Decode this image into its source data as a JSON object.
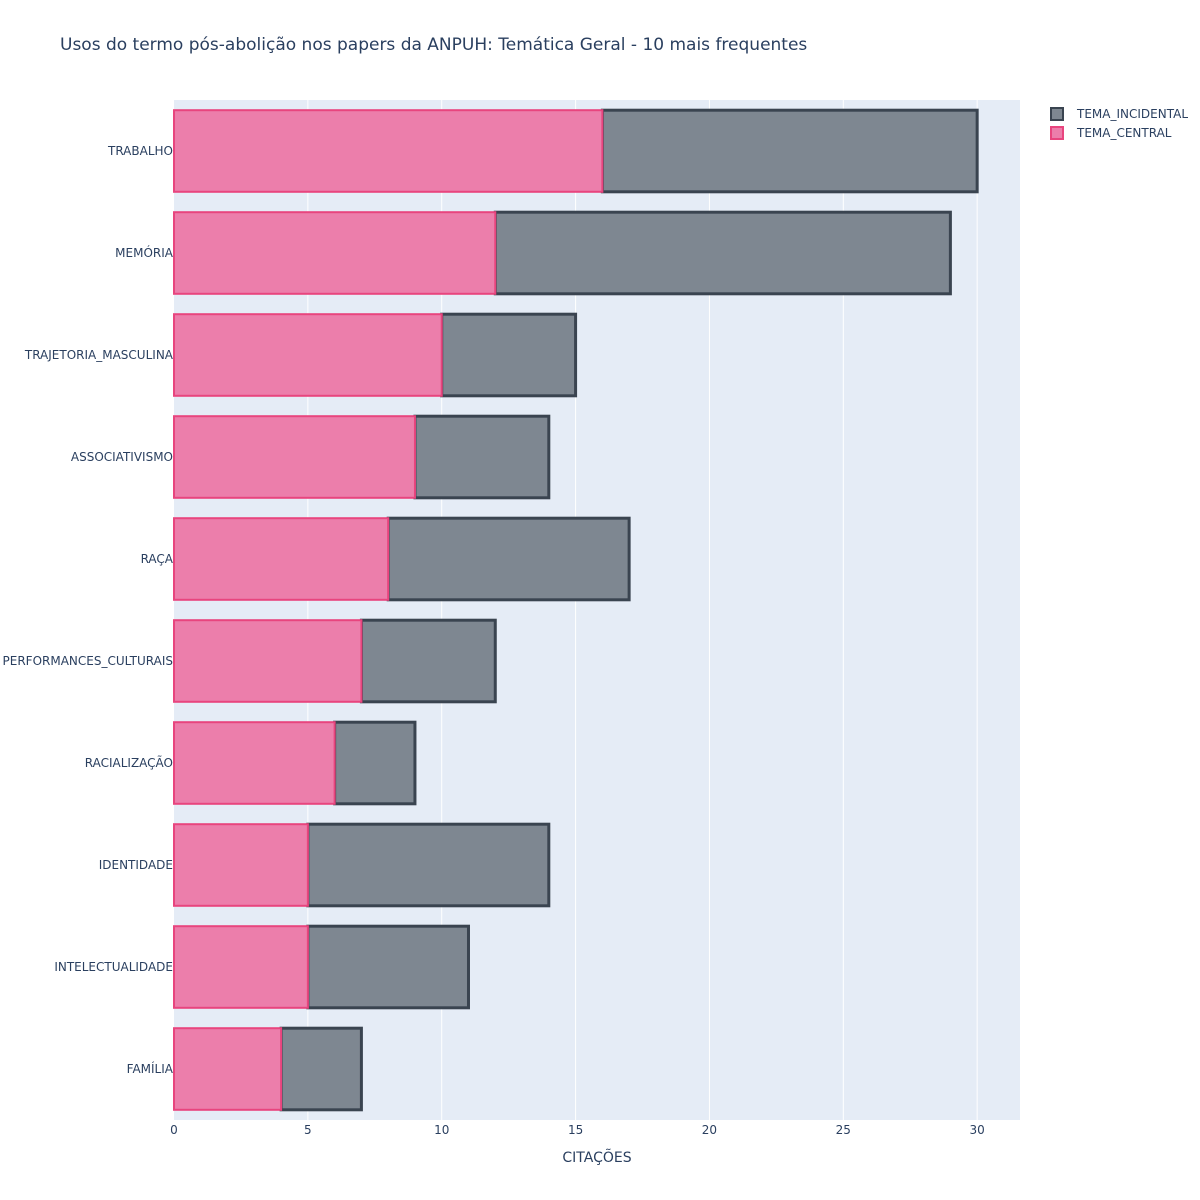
{
  "chart_data": {
    "type": "bar",
    "orientation": "horizontal",
    "barmode": "stack",
    "title": "Usos do termo pós-abolição nos papers da ANPUH: Temática Geral - 10 mais frequentes",
    "xlabel": "CITAÇÕES",
    "ylabel": "",
    "xlim": [
      0,
      31.6
    ],
    "xticks": [
      0,
      5,
      10,
      15,
      20,
      25,
      30
    ],
    "grid": true,
    "legend_position": "top-right",
    "categories": [
      "TRABALHO",
      "MEMÓRIA",
      "TRAJETORIA_MASCULINA",
      "ASSOCIATIVISMO",
      "RAÇA",
      "PERFORMANCES_CULTURAIS",
      "RACIALIZAÇÃO",
      "IDENTIDADE",
      "INTELECTUALIDADE",
      "FAMÍLIA"
    ],
    "series": [
      {
        "name": "TEMA_CENTRAL",
        "values": [
          16,
          12,
          10,
          9,
          8,
          7,
          6,
          5,
          5,
          4
        ],
        "fill": "#ec7eab",
        "stroke": "#e8457e"
      },
      {
        "name": "TEMA_INCIDENTAL",
        "values": [
          14,
          17,
          5,
          5,
          9,
          5,
          3,
          9,
          6,
          3
        ],
        "fill": "#7e8791",
        "stroke": "#3a4450"
      }
    ],
    "legend_order": [
      "TEMA_INCIDENTAL",
      "TEMA_CENTRAL"
    ],
    "colors": {
      "plot_bg": "#e5ecf6",
      "grid": "#ffffff",
      "text": "#2a3f5f"
    }
  }
}
